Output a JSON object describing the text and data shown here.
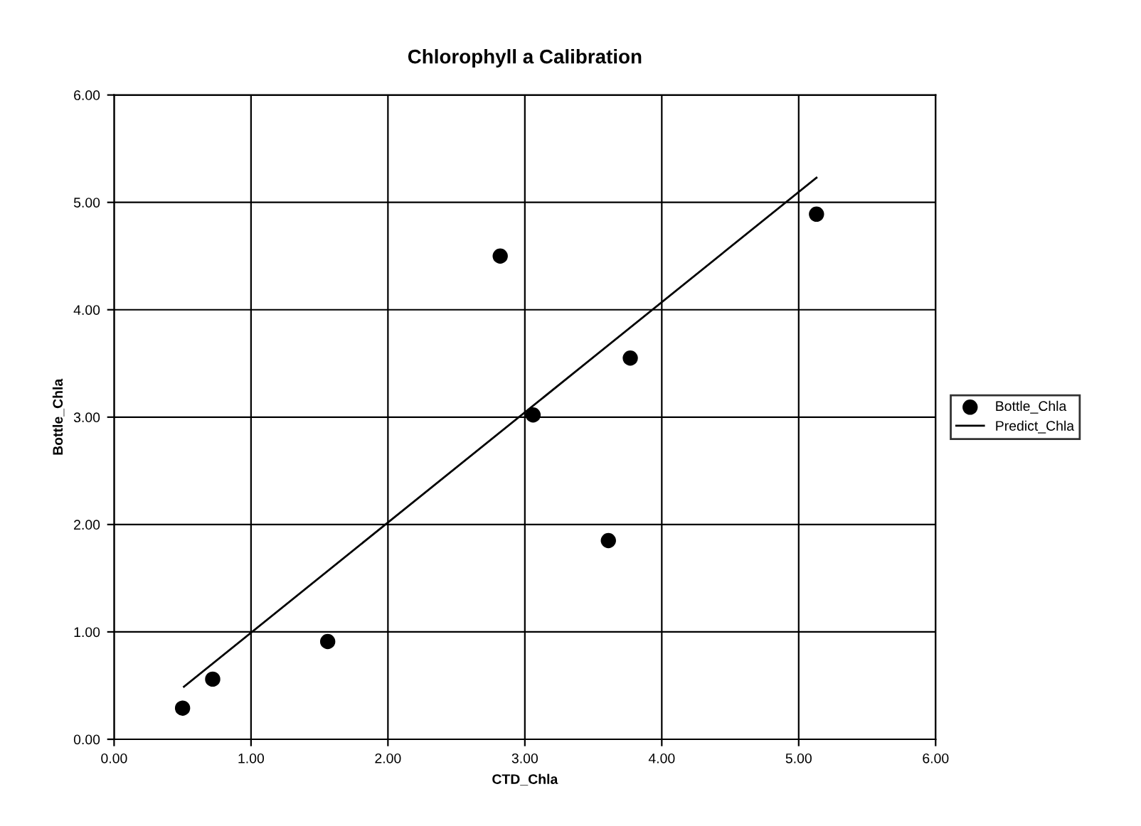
{
  "chart_data": {
    "type": "scatter",
    "title": "Chlorophyll a Calibration",
    "xlabel": "CTD_Chla",
    "ylabel": "Bottle_Chla",
    "xlim": [
      0,
      6
    ],
    "ylim": [
      0,
      6
    ],
    "xticks": [
      {
        "value": 0,
        "label": "0.00"
      },
      {
        "value": 1,
        "label": "1.00"
      },
      {
        "value": 2,
        "label": "2.00"
      },
      {
        "value": 3,
        "label": "3.00"
      },
      {
        "value": 4,
        "label": "4.00"
      },
      {
        "value": 5,
        "label": "5.00"
      },
      {
        "value": 6,
        "label": "6.00"
      }
    ],
    "yticks": [
      {
        "value": 0,
        "label": "0.00"
      },
      {
        "value": 1,
        "label": "1.00"
      },
      {
        "value": 2,
        "label": "2.00"
      },
      {
        "value": 3,
        "label": "3.00"
      },
      {
        "value": 4,
        "label": "4.00"
      },
      {
        "value": 5,
        "label": "5.00"
      },
      {
        "value": 6,
        "label": "6.00"
      }
    ],
    "grid": true,
    "legend": "right",
    "series": [
      {
        "name": "Bottle_Chla",
        "marker": "circle",
        "color": "#000000",
        "x": [
          0.5,
          0.72,
          1.56,
          2.82,
          3.06,
          3.61,
          3.77,
          5.13
        ],
        "values": [
          0.29,
          0.56,
          0.91,
          4.5,
          3.02,
          1.85,
          3.55,
          4.89
        ]
      },
      {
        "name": "Predict_Chla",
        "type": "line",
        "marker": "none",
        "line_style": "solid",
        "color": "#000000",
        "x": [
          0.51,
          5.13
        ],
        "values": [
          0.49,
          5.23
        ]
      }
    ]
  }
}
